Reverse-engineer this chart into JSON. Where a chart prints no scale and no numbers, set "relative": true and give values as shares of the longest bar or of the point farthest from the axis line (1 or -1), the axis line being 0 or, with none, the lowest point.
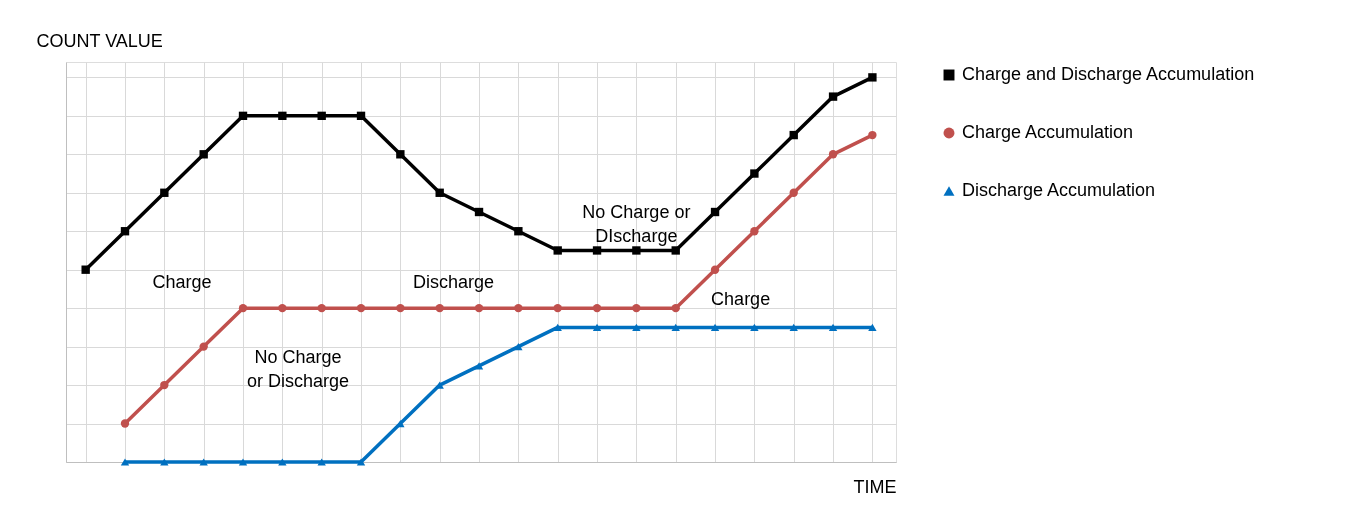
{
  "chart_data": {
    "type": "line",
    "relative": true,
    "xlabel": "TIME",
    "ylabel": "COUNT VALUE",
    "categories": [
      null,
      null,
      null,
      null,
      null,
      null,
      null,
      null,
      null,
      null,
      null,
      null,
      null,
      null,
      null,
      null,
      null,
      null,
      null,
      null,
      null
    ],
    "grid": true,
    "legend": "right",
    "series": [
      {
        "name": "Charge and Discharge Accumulation",
        "color": "#000000",
        "marker": "square",
        "values": [
          0.5,
          0.6,
          0.7,
          0.8,
          0.9,
          0.9,
          0.9,
          0.9,
          0.8,
          0.7,
          0.65,
          0.6,
          0.55,
          0.55,
          0.55,
          0.55,
          0.65,
          0.75,
          0.85,
          0.95,
          1.0
        ]
      },
      {
        "name": "Charge Accumulation",
        "color": "#c0504d",
        "marker": "circle",
        "values": [
          null,
          0.1,
          0.2,
          0.3,
          0.4,
          0.4,
          0.4,
          0.4,
          0.4,
          0.4,
          0.4,
          0.4,
          0.4,
          0.4,
          0.4,
          0.4,
          0.5,
          0.6,
          0.7,
          0.8,
          0.85
        ]
      },
      {
        "name": "Discharge Accumulation",
        "color": "#0070c0",
        "marker": "triangle",
        "values": [
          null,
          0,
          0,
          0,
          0,
          0,
          0,
          0,
          0.1,
          0.2,
          0.25,
          0.3,
          0.35,
          0.35,
          0.35,
          0.35,
          0.35,
          0.35,
          0.35,
          0.35,
          0.35
        ]
      }
    ],
    "annotations": [
      "Charge",
      "No Charge\nor Discharge",
      "Discharge",
      "No Charge or\nDIscharge",
      "Charge"
    ]
  }
}
